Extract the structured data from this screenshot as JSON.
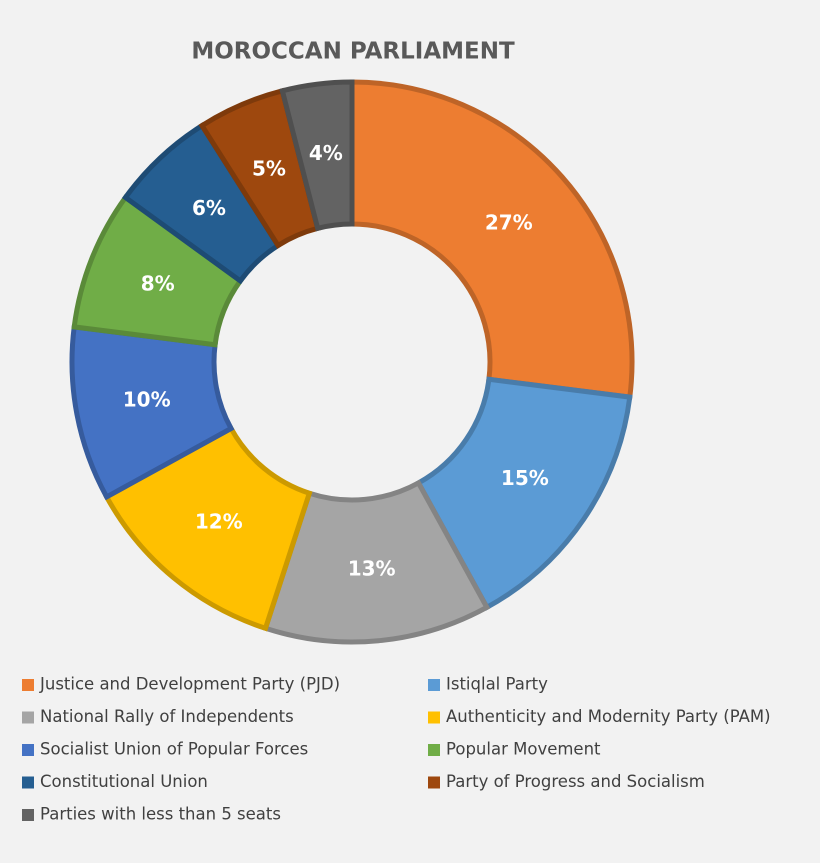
{
  "chart_data": {
    "type": "donut",
    "title": "MOROCCAN PARLIAMENT",
    "categories": [
      "Justice and Development Party (PJD)",
      "Istiqlal Party",
      "National Rally of Independents",
      "Authenticity and Modernity Party (PAM)",
      "Socialist Union of Popular Forces",
      "Popular Movement",
      "Constitutional Union",
      "Party of Progress and Socialism",
      "Parties with less than 5 seats"
    ],
    "values": [
      27,
      15,
      13,
      12,
      10,
      8,
      6,
      5,
      4
    ],
    "value_labels": [
      "27%",
      "15%",
      "13%",
      "12%",
      "10%",
      "8%",
      "6%",
      "5%",
      "4%"
    ],
    "colors": [
      "#ed7d31",
      "#5b9bd5",
      "#a5a5a5",
      "#ffc000",
      "#4472c4",
      "#70ad47",
      "#255e91",
      "#9e480e",
      "#636363"
    ]
  }
}
